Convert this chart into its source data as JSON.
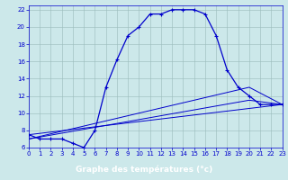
{
  "xlabel": "Graphe des températures (°c)",
  "bg_color": "#cce8ea",
  "line_color": "#0000cc",
  "hours": [
    0,
    1,
    2,
    3,
    4,
    5,
    6,
    7,
    8,
    9,
    10,
    11,
    12,
    13,
    14,
    15,
    16,
    17,
    18,
    19,
    20,
    21,
    22,
    23
  ],
  "temp": [
    7.5,
    7.0,
    7.0,
    7.0,
    6.5,
    6.0,
    8.0,
    13.0,
    16.2,
    19.0,
    20.0,
    21.5,
    21.5,
    22.0,
    22.0,
    22.0,
    21.5,
    19.0,
    15.0,
    13.0,
    12.0,
    11.0,
    11.0,
    11.0
  ],
  "line1_x": [
    0,
    23
  ],
  "line1_y": [
    7.5,
    11.0
  ],
  "line2_x": [
    0,
    20,
    23
  ],
  "line2_y": [
    7.0,
    13.0,
    11.0
  ],
  "line3_x": [
    0,
    20,
    23
  ],
  "line3_y": [
    7.0,
    11.5,
    11.0
  ],
  "ylim": [
    6,
    22.5
  ],
  "xlim": [
    0,
    23
  ],
  "yticks": [
    6,
    8,
    10,
    12,
    14,
    16,
    18,
    20,
    22
  ],
  "ytick_labels": [
    "6",
    "8",
    "10",
    "12",
    "14",
    "16",
    "18",
    "20",
    "22"
  ],
  "xticks": [
    0,
    1,
    2,
    3,
    4,
    5,
    6,
    7,
    8,
    9,
    10,
    11,
    12,
    13,
    14,
    15,
    16,
    17,
    18,
    19,
    20,
    21,
    22,
    23
  ],
  "grid_color": "#99bbbb",
  "tick_fontsize": 5.0,
  "xlabel_fontsize": 6.5,
  "xlabel_color": "#0000cc",
  "bottom_bar_color": "#3333aa",
  "bottom_bar_text_color": "#ffffff"
}
